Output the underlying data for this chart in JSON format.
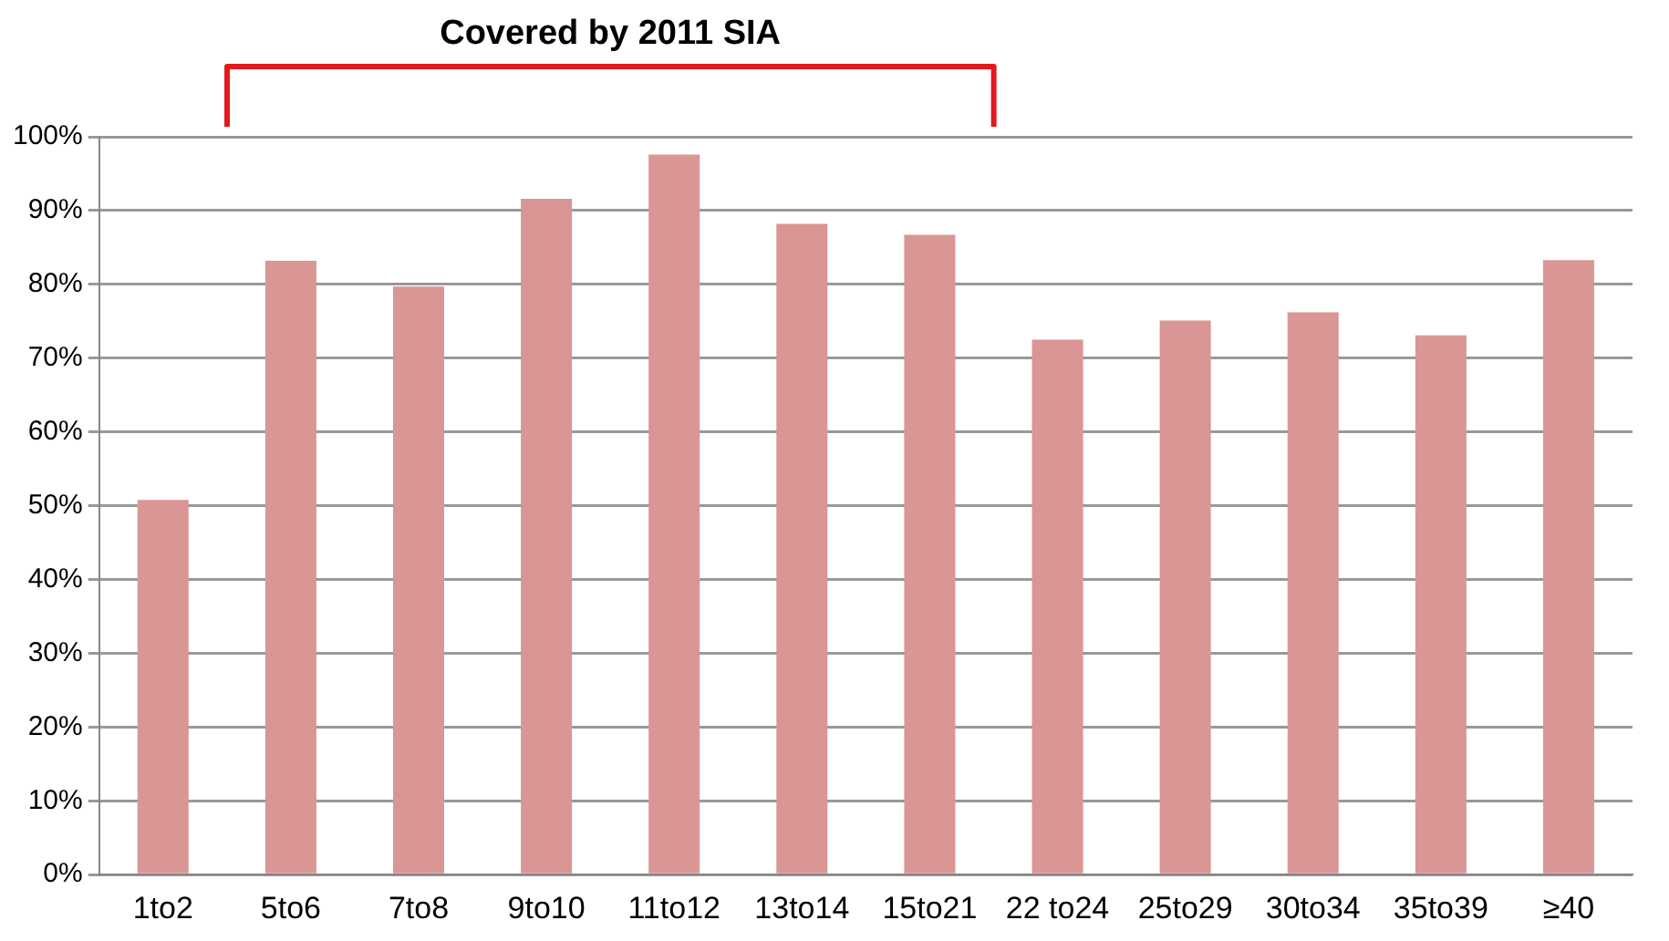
{
  "chart_data": {
    "type": "bar",
    "categories": [
      "1to2",
      "5to6",
      "7to8",
      "9to10",
      "11to12",
      "13to14",
      "15to21",
      "22 to24",
      "25to29",
      "30to34",
      "35to39",
      "≥40"
    ],
    "values": [
      50.8,
      83.2,
      79.7,
      91.6,
      97.6,
      88.2,
      86.7,
      72.5,
      75.1,
      76.2,
      73.1,
      83.3
    ],
    "color": "#d99694",
    "ylim": [
      0,
      100
    ],
    "yticks": [
      {
        "value": 0,
        "label": "0%"
      },
      {
        "value": 10,
        "label": "10%"
      },
      {
        "value": 20,
        "label": "20%"
      },
      {
        "value": 30,
        "label": "30%"
      },
      {
        "value": 40,
        "label": "40%"
      },
      {
        "value": 50,
        "label": "50%"
      },
      {
        "value": 60,
        "label": "60%"
      },
      {
        "value": 70,
        "label": "70%"
      },
      {
        "value": 80,
        "label": "80%"
      },
      {
        "value": 90,
        "label": "90%"
      },
      {
        "value": 100,
        "label": "100%"
      }
    ],
    "grid": "y",
    "legend": false,
    "annotations": [
      "Covered by 2011 SIA"
    ]
  }
}
